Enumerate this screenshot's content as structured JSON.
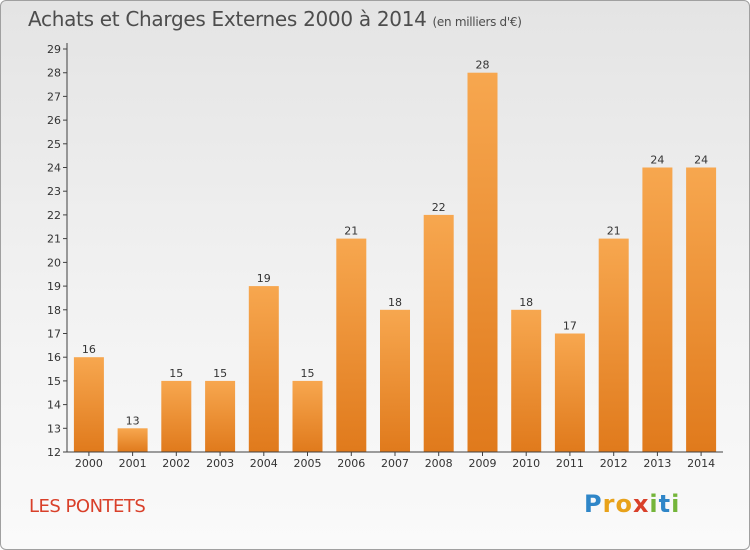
{
  "header": {
    "title": "Achats et Charges Externes 2000 à 2014",
    "subtitle": "(en milliers d'€)"
  },
  "footer": {
    "place": "LES PONTETS",
    "logo_text": "Proxiti",
    "logo_letters": [
      "P",
      "r",
      "o",
      "x",
      "i",
      "t",
      "i"
    ],
    "logo_colors": [
      "#2f86c8",
      "#e8a21a",
      "#e8a21a",
      "#d9402a",
      "#74b53a",
      "#2f86c8",
      "#74b53a"
    ]
  },
  "colors": {
    "bar_top": "#f7a74f",
    "bar_bottom": "#e07a1c",
    "axis": "#404040",
    "grid_tick": "#404040",
    "label": "#333333",
    "place": "#d9402a"
  },
  "chart_data": {
    "type": "bar",
    "categories": [
      "2000",
      "2001",
      "2002",
      "2003",
      "2004",
      "2005",
      "2006",
      "2007",
      "2008",
      "2009",
      "2010",
      "2011",
      "2012",
      "2013",
      "2014"
    ],
    "values": [
      16,
      13,
      15,
      15,
      19,
      15,
      21,
      18,
      22,
      28,
      18,
      17,
      21,
      24,
      24
    ],
    "data_labels": [
      "16",
      "13",
      "15",
      "15",
      "19",
      "15",
      "21",
      "18",
      "22",
      "28",
      "18",
      "17",
      "21",
      "24",
      "24"
    ],
    "y_ticks": [
      "12",
      "13",
      "14",
      "15",
      "16",
      "17",
      "18",
      "19",
      "20",
      "21",
      "22",
      "23",
      "24",
      "25",
      "26",
      "27",
      "28",
      "29"
    ],
    "ylim": [
      12,
      29
    ],
    "title": "Achats et Charges Externes 2000 à 2014",
    "xlabel": "",
    "ylabel": "",
    "grid": false
  }
}
